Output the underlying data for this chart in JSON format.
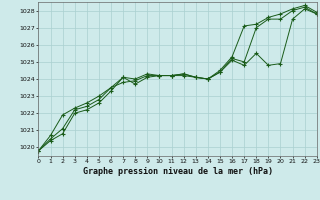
{
  "title": "Graphe pression niveau de la mer (hPa)",
  "bg_color": "#ceeaea",
  "grid_color": "#aad0d0",
  "line_color": "#1a5c1a",
  "marker_color": "#1a5c1a",
  "xlim": [
    0,
    23
  ],
  "ylim": [
    1019.5,
    1028.5
  ],
  "yticks": [
    1020,
    1021,
    1022,
    1023,
    1024,
    1025,
    1026,
    1027,
    1028
  ],
  "xticks": [
    0,
    1,
    2,
    3,
    4,
    5,
    6,
    7,
    8,
    9,
    10,
    11,
    12,
    13,
    14,
    15,
    16,
    17,
    18,
    19,
    20,
    21,
    22,
    23
  ],
  "series": [
    [
      1019.8,
      1020.4,
      1020.8,
      1022.0,
      1022.2,
      1022.6,
      1023.3,
      1024.1,
      1024.0,
      1024.3,
      1024.2,
      1024.2,
      1024.3,
      1024.1,
      1024.0,
      1024.4,
      1025.2,
      1025.0,
      1027.0,
      1027.5,
      1027.5,
      1028.0,
      1028.2,
      1027.8
    ],
    [
      1019.8,
      1020.5,
      1021.1,
      1022.2,
      1022.4,
      1022.8,
      1023.5,
      1023.8,
      1023.9,
      1024.2,
      1024.2,
      1024.2,
      1024.3,
      1024.1,
      1024.0,
      1024.5,
      1025.3,
      1027.1,
      1027.2,
      1027.6,
      1027.8,
      1028.1,
      1028.3,
      1027.9
    ],
    [
      1019.8,
      1020.7,
      1021.9,
      1022.3,
      1022.6,
      1023.0,
      1023.5,
      1024.1,
      1023.7,
      1024.1,
      1024.2,
      1024.2,
      1024.2,
      1024.1,
      1024.0,
      1024.4,
      1025.1,
      1024.8,
      1025.5,
      1024.8,
      1024.9,
      1027.5,
      1028.1,
      1027.8
    ]
  ]
}
